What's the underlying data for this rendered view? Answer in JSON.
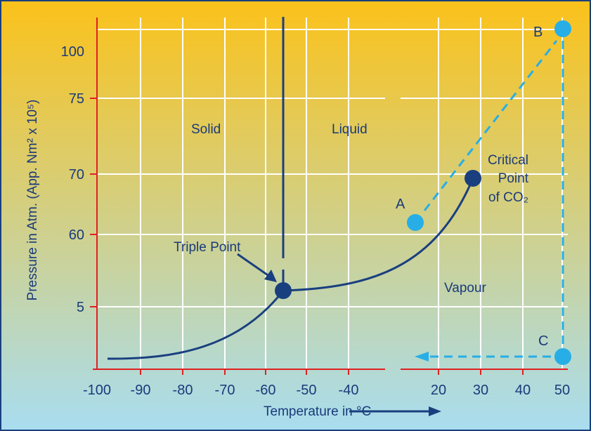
{
  "diagram": {
    "colors": {
      "bg_top": "#fbc21a",
      "bg_bottom": "#a9ddf0",
      "axis": "#e02020",
      "grid": "#ffffff",
      "curve": "#1a3f7f",
      "dot_dark": "#1a3f7f",
      "dot_light": "#27aee6",
      "dashed": "#27aee6",
      "text": "#1a3a7a",
      "frame": "#1a3f7f"
    },
    "y_axis_title": "Pressure in Atm. (App. Nm² x 10⁵)",
    "x_axis_title": "Temperature in °C",
    "y_ticks": [
      "100",
      "75",
      "70",
      "60",
      "5"
    ],
    "x_ticks": [
      "-100",
      "-90",
      "-80",
      "-70",
      "-60",
      "-50",
      "-40",
      "20",
      "30",
      "40",
      "50"
    ],
    "regions": {
      "solid": "Solid",
      "liquid": "Liquid",
      "vapour": "Vapour"
    },
    "triple_point": "Triple Point",
    "critical_point": [
      "Critical",
      "Point",
      "of CO₂"
    ],
    "points": {
      "a": "A",
      "b": "B",
      "c": "C"
    }
  }
}
